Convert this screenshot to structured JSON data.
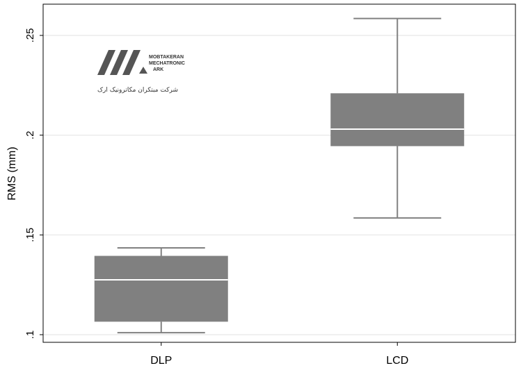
{
  "chart_data": {
    "type": "boxplot",
    "ylabel": "RMS (mm)",
    "ylim": [
      0.1,
      0.26
    ],
    "yticks": [
      {
        "value": 0.1,
        "label": ".1"
      },
      {
        "value": 0.15,
        "label": ".15"
      },
      {
        "value": 0.2,
        "label": ".2"
      },
      {
        "value": 0.25,
        "label": ".25"
      }
    ],
    "grid": true,
    "categories": [
      "DLP",
      "LCD"
    ],
    "boxes": [
      {
        "name": "DLP",
        "min": 0.101,
        "q1": 0.1065,
        "median": 0.1275,
        "q3": 0.1395,
        "max": 0.1435
      },
      {
        "name": "LCD",
        "min": 0.1585,
        "q1": 0.1945,
        "median": 0.203,
        "q3": 0.221,
        "max": 0.2585
      }
    ],
    "colors": {
      "box": "#808080",
      "median": "#ffffff",
      "whisker": "#808080",
      "grid": "#e6e6e6"
    }
  },
  "watermark": {
    "line1": "MOBTAKERAN",
    "line2": "MECHATRONIC",
    "line3": "ARK",
    "subtitle": "شرکت مبتکران مکاترونیک ارک"
  }
}
